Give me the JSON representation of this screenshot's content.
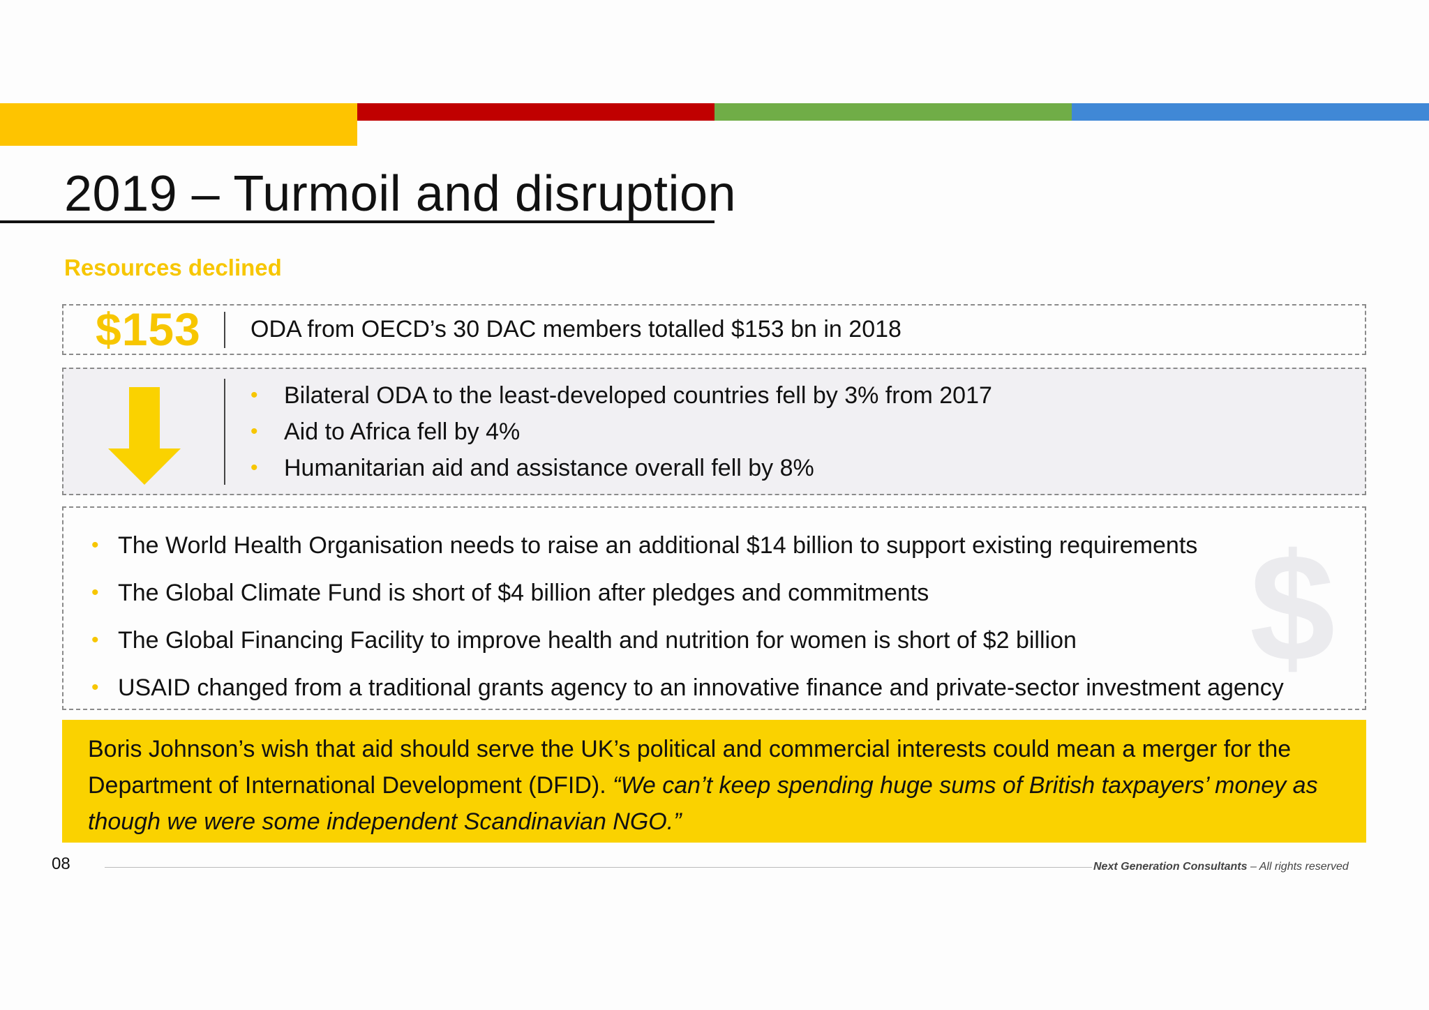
{
  "colors": {
    "yellow": "#fec400",
    "red": "#c00000",
    "green": "#70ad47",
    "blue": "#4088d6",
    "accent": "#f7c600",
    "callout_bg": "#fad200",
    "panel_bg": "#f1f0f3"
  },
  "header": {
    "title": "2019 – Turmoil and disruption",
    "subtitle": "Resources declined"
  },
  "stat": {
    "value": "$153",
    "text": "ODA from OECD’s 30 DAC members totalled $153 bn in 2018"
  },
  "declines": {
    "icon": "down-arrow-icon",
    "items": [
      "Bilateral ODA to the least-developed countries fell by 3% from 2017",
      "Aid to Africa fell by 4%",
      "Humanitarian aid and assistance overall fell by 8%"
    ]
  },
  "shortfalls": {
    "watermark": "$",
    "items": [
      "The World Health Organisation needs to raise an additional $14 billion to support existing requirements",
      "The Global Climate Fund is short of $4 billion after pledges and commitments",
      "The Global Financing Facility to improve health and nutrition for women is short of $2 billion",
      "USAID changed from a traditional grants agency to an innovative finance and private-sector investment agency"
    ]
  },
  "callout": {
    "text": "Boris Johnson’s wish that aid should serve the UK’s political and commercial interests could mean a merger for the Department of International Development (DFID).",
    "quote": "“We can’t keep spending huge sums of British taxpayers’ money as though we were some independent Scandinavian NGO.”"
  },
  "footer": {
    "page_number": "08",
    "company": "Next Generation Consultants",
    "rights": "– All rights reserved"
  }
}
